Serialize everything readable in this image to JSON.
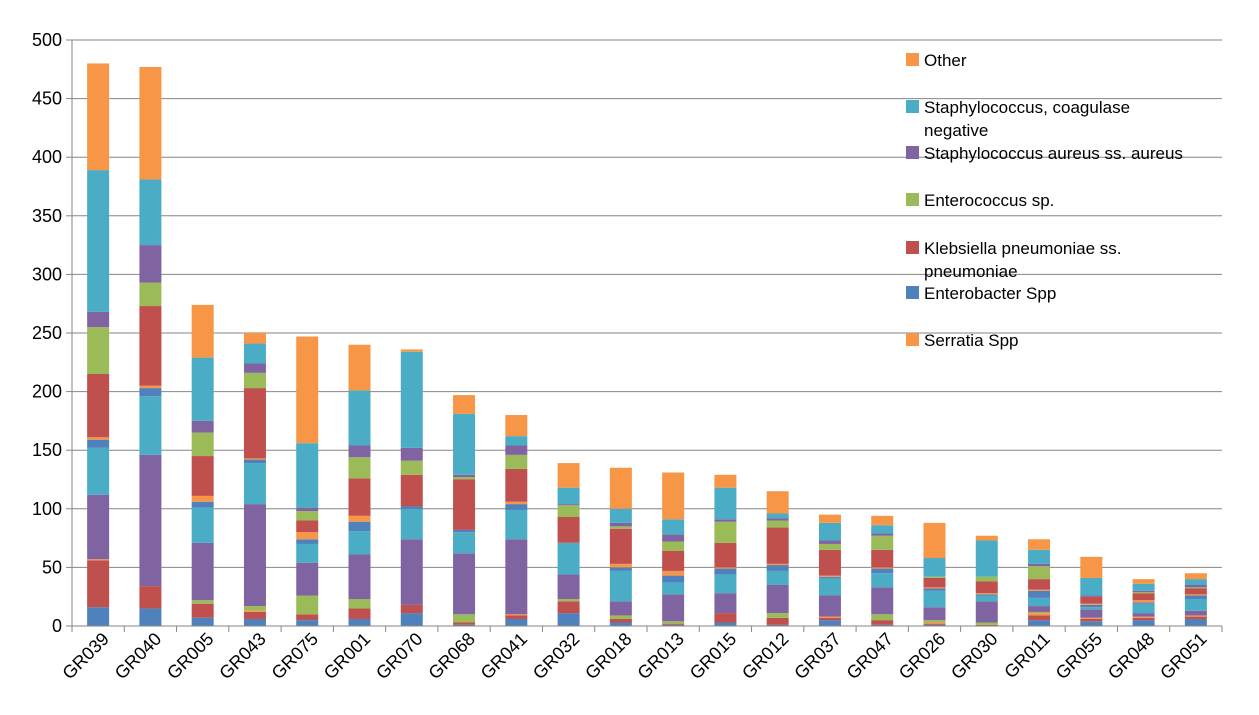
{
  "chart_data": {
    "type": "bar",
    "stacked": true,
    "ylim": [
      0,
      500
    ],
    "yticks": [
      0,
      50,
      100,
      150,
      200,
      250,
      300,
      350,
      400,
      450,
      500
    ],
    "grid": true,
    "legend_position": "right",
    "categories": [
      "GR039",
      "GR040",
      "GR005",
      "GR043",
      "GR075",
      "GR001",
      "GR070",
      "GR068",
      "GR041",
      "GR032",
      "GR018",
      "GR013",
      "GR015",
      "GR012",
      "GR037",
      "GR047",
      "GR026",
      "GR030",
      "GR011",
      "GR055",
      "GR048",
      "GR051"
    ],
    "series": [
      {
        "key": "enterobacter_base",
        "color": "#4f81bd",
        "values": [
          16,
          15,
          7,
          6,
          5,
          6,
          11,
          1,
          6,
          11,
          3,
          1,
          3,
          1,
          5,
          1,
          1,
          0,
          5,
          4,
          5,
          6
        ]
      },
      {
        "key": "klebsiella_base",
        "color": "#c0504d",
        "values": [
          40,
          19,
          12,
          6,
          5,
          9,
          7,
          2,
          3,
          10,
          3,
          1,
          8,
          6,
          2,
          4,
          1,
          1,
          4,
          2,
          2,
          2
        ]
      },
      {
        "key": "serratia_base",
        "color": "#f79646",
        "values": [
          1,
          0,
          0,
          1,
          0,
          0,
          0,
          0,
          1,
          0,
          0,
          0,
          0,
          0,
          1,
          0,
          1,
          0,
          2,
          1,
          1,
          1
        ]
      },
      {
        "key": "enterococcus_base",
        "color": "#9bbb59",
        "values": [
          0,
          0,
          3,
          4,
          16,
          8,
          0,
          7,
          0,
          2,
          3,
          2,
          0,
          4,
          0,
          5,
          2,
          2,
          1,
          0,
          0,
          0
        ]
      },
      {
        "key": "saureus_base",
        "color": "#8064a2",
        "values": [
          55,
          112,
          49,
          87,
          28,
          38,
          56,
          52,
          64,
          21,
          12,
          23,
          17,
          24,
          18,
          23,
          11,
          18,
          5,
          7,
          3,
          4
        ]
      },
      {
        "key": "teal_layer",
        "color": "#4bacc6",
        "values": [
          40,
          50,
          30,
          35,
          16,
          20,
          26,
          18,
          25,
          27,
          26,
          10,
          16,
          12,
          15,
          12,
          14,
          5,
          7,
          2,
          8,
          10
        ]
      },
      {
        "key": "enterobacter",
        "color": "#4f81bd",
        "values": [
          7,
          7,
          5,
          3,
          4,
          8,
          2,
          2,
          5,
          0,
          3,
          6,
          5,
          5,
          1,
          4,
          2,
          1,
          6,
          2,
          1,
          3
        ]
      },
      {
        "key": "serratia",
        "color": "#f79646",
        "values": [
          2,
          2,
          5,
          1,
          6,
          5,
          0,
          0,
          2,
          0,
          3,
          4,
          1,
          1,
          1,
          1,
          1,
          1,
          1,
          1,
          2,
          1
        ]
      },
      {
        "key": "klebsiella",
        "color": "#c0504d",
        "values": [
          54,
          68,
          34,
          60,
          10,
          32,
          27,
          43,
          28,
          22,
          30,
          17,
          21,
          31,
          22,
          15,
          8,
          10,
          9,
          6,
          6,
          5
        ]
      },
      {
        "key": "enterococcus",
        "color": "#9bbb59",
        "values": [
          40,
          20,
          20,
          13,
          8,
          18,
          12,
          2,
          12,
          10,
          2,
          8,
          18,
          6,
          5,
          12,
          1,
          4,
          11,
          0,
          1,
          1
        ]
      },
      {
        "key": "saureus",
        "color": "#8064a2",
        "values": [
          13,
          32,
          10,
          8,
          3,
          10,
          11,
          2,
          8,
          1,
          3,
          6,
          2,
          2,
          3,
          2,
          0,
          0,
          2,
          1,
          1,
          2
        ]
      },
      {
        "key": "scn",
        "color": "#4bacc6",
        "values": [
          121,
          56,
          54,
          17,
          55,
          47,
          82,
          52,
          8,
          14,
          12,
          13,
          27,
          4,
          15,
          7,
          16,
          31,
          12,
          15,
          6,
          5
        ]
      },
      {
        "key": "other",
        "color": "#f79646",
        "values": [
          91,
          96,
          45,
          9,
          91,
          39,
          2,
          16,
          18,
          21,
          35,
          40,
          11,
          19,
          7,
          8,
          30,
          4,
          9,
          18,
          4,
          5
        ]
      }
    ],
    "legend": [
      {
        "label": "Other",
        "color": "#f79646"
      },
      {
        "label": "Staphylococcus, coagulase negative",
        "color": "#4bacc6"
      },
      {
        "label": "Staphylococcus aureus ss. aureus",
        "color": "#8064a2"
      },
      {
        "label": "Enterococcus sp.",
        "color": "#9bbb59"
      },
      {
        "label": "Klebsiella pneumoniae ss. pneumoniae",
        "color": "#c0504d"
      },
      {
        "label": "Enterobacter Spp",
        "color": "#4f81bd"
      },
      {
        "label": "Serratia Spp",
        "color": "#f79646"
      }
    ],
    "legend_lines": [
      [
        "Other"
      ],
      [
        "Staphylococcus, coagulase",
        "negative"
      ],
      [
        "Staphylococcus aureus ss. aureus"
      ],
      [
        "Enterococcus sp."
      ],
      [
        "Klebsiella pneumoniae ss.",
        "pneumoniae"
      ],
      [
        "Enterobacter Spp"
      ],
      [
        "Serratia Spp"
      ]
    ]
  }
}
